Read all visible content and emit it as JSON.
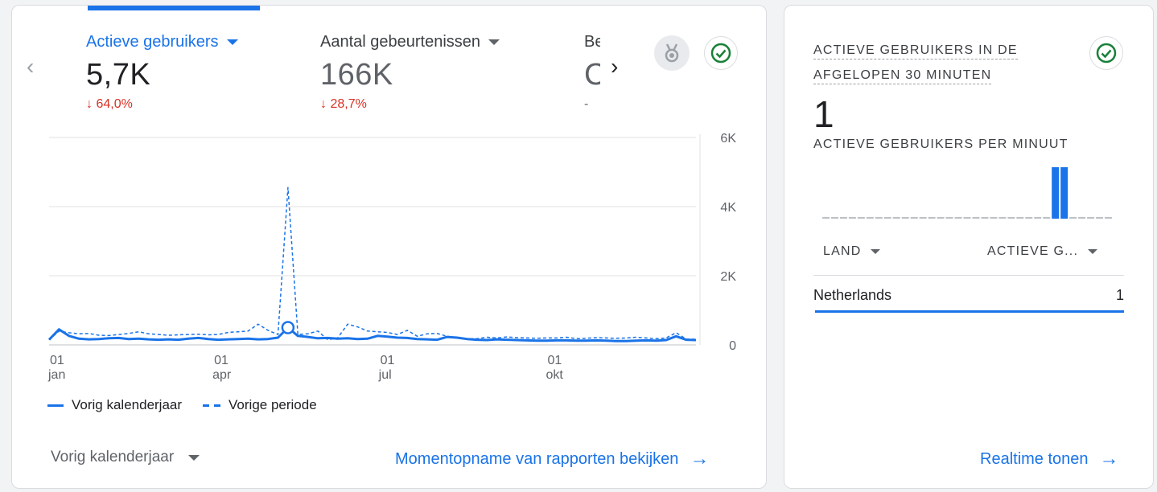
{
  "overview": {
    "metrics": [
      {
        "label": "Actieve gebruikers",
        "value": "5,7K",
        "delta": "64,0%",
        "delta_direction": "down"
      },
      {
        "label": "Aantal gebeurtenissen",
        "value": "166K",
        "delta": "28,7%",
        "delta_direction": "down"
      },
      {
        "label": "Be",
        "value": "C",
        "delta": "-"
      }
    ],
    "icons": {
      "prev": "chevron-left-icon",
      "next": "chevron-right-icon",
      "medal": "medal-icon",
      "check": "check-circle-icon"
    },
    "accent_color": "#1a73e8",
    "down_color": "#d93025",
    "check_color": "#188038"
  },
  "chart_data": {
    "type": "line",
    "x_tick_labels": [
      [
        "01",
        "jan"
      ],
      [
        "01",
        "apr"
      ],
      [
        "01",
        "jul"
      ],
      [
        "01",
        "okt"
      ]
    ],
    "y_tick_labels": [
      "6K",
      "4K",
      "2K",
      "0"
    ],
    "ylim": [
      0,
      6000
    ],
    "grid": true,
    "legend_position": "bottom-left",
    "series": [
      {
        "name": "Vorig kalenderjaar",
        "style": "solid",
        "values": [
          150,
          450,
          260,
          180,
          160,
          170,
          190,
          200,
          170,
          180,
          160,
          150,
          160,
          150,
          180,
          200,
          170,
          150,
          160,
          170,
          180,
          160,
          170,
          210,
          500,
          260,
          230,
          190,
          200,
          180,
          190,
          170,
          180,
          260,
          240,
          210,
          200,
          170,
          160,
          150,
          230,
          210,
          170,
          150,
          140,
          160,
          150,
          140,
          130,
          120,
          120,
          130,
          130,
          120,
          120,
          130,
          120,
          110,
          110,
          120,
          130,
          120,
          140,
          250,
          150,
          140
        ]
      },
      {
        "name": "Vorige periode",
        "style": "dashed",
        "values": [
          150,
          400,
          350,
          320,
          330,
          280,
          270,
          300,
          330,
          380,
          320,
          300,
          280,
          290,
          300,
          310,
          290,
          300,
          360,
          380,
          400,
          600,
          420,
          300,
          4550,
          300,
          320,
          400,
          150,
          200,
          600,
          520,
          400,
          380,
          360,
          300,
          420,
          250,
          320,
          330,
          250,
          200,
          180,
          180,
          220,
          200,
          230,
          210,
          200,
          190,
          200,
          200,
          220,
          180,
          190,
          210,
          200,
          190,
          200,
          220,
          200,
          180,
          200,
          350,
          170,
          160
        ]
      }
    ],
    "highlight_point": {
      "series": "Vorig kalenderjaar",
      "index": 24
    }
  },
  "legend": {
    "series1": "Vorig kalenderjaar",
    "series2": "Vorige periode"
  },
  "footer": {
    "period_select": "Vorig kalenderjaar",
    "snapshot_link": "Momentopname van rapporten bekijken"
  },
  "realtime": {
    "title": [
      "ACTIEVE GEBRUIKERS IN DE",
      "AFGELOPEN 30 MINUTEN"
    ],
    "value": "1",
    "per_minute_label": "ACTIEVE GEBRUIKERS PER MINUUT",
    "per_minute_values": [
      0,
      0,
      0,
      0,
      0,
      0,
      0,
      0,
      0,
      0,
      0,
      0,
      0,
      0,
      0,
      0,
      0,
      0,
      0,
      0,
      0,
      0,
      0,
      0,
      0,
      0,
      1,
      1,
      0,
      0,
      0,
      0,
      0
    ],
    "col1": "LAND",
    "col2": "ACTIEVE G...",
    "rows": [
      {
        "country": "Netherlands",
        "count": "1"
      }
    ],
    "link": "Realtime tonen"
  }
}
